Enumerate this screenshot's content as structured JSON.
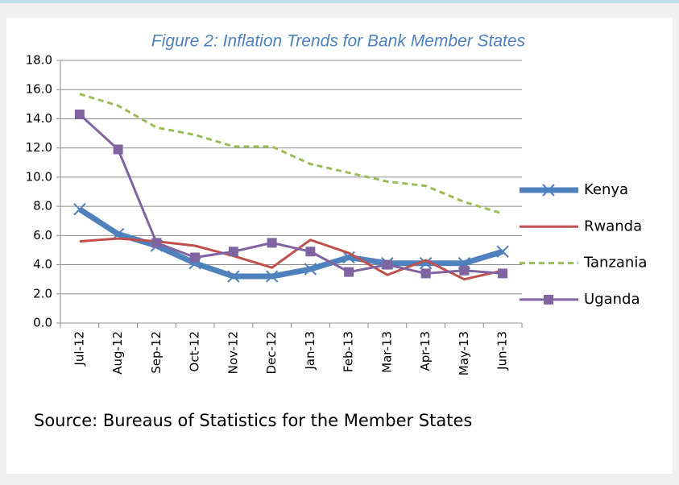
{
  "chart_data": {
    "type": "line",
    "title": "Figure 2: Inflation Trends for Bank Member States",
    "source": "Source: Bureaus of Statistics for the Member States",
    "categories": [
      "Jul-12",
      "Aug-12",
      "Sep-12",
      "Oct-12",
      "Nov-12",
      "Dec-12",
      "Jan-13",
      "Feb-13",
      "Mar-13",
      "Apr-13",
      "May-13",
      "Jun-13"
    ],
    "ylim": [
      0,
      18
    ],
    "yticks": [
      {
        "value": 0,
        "label": "0.0"
      },
      {
        "value": 2,
        "label": "2.0"
      },
      {
        "value": 4,
        "label": "4.0"
      },
      {
        "value": 6,
        "label": "6.0"
      },
      {
        "value": 8,
        "label": "8.0"
      },
      {
        "value": 10,
        "label": "10.0"
      },
      {
        "value": 12,
        "label": "12.0"
      },
      {
        "value": 14,
        "label": "14.0"
      },
      {
        "value": 16,
        "label": "16.0"
      },
      {
        "value": 18,
        "label": "18.0"
      }
    ],
    "grid": true,
    "legend": "right",
    "series": [
      {
        "name": "Kenya",
        "color": "#4f81bd",
        "values": [
          7.8,
          6.1,
          5.3,
          4.1,
          3.2,
          3.2,
          3.7,
          4.5,
          4.1,
          4.1,
          4.1,
          4.9
        ]
      },
      {
        "name": "Rwanda",
        "color": "#c0504d",
        "values": [
          5.6,
          5.8,
          5.6,
          5.3,
          4.6,
          3.8,
          5.7,
          4.8,
          3.3,
          4.3,
          3.0,
          3.6
        ]
      },
      {
        "name": "Tanzania",
        "color": "#9bbb59",
        "values": [
          15.7,
          14.9,
          13.4,
          12.9,
          12.1,
          12.1,
          10.9,
          10.3,
          9.7,
          9.4,
          8.3,
          7.5
        ]
      },
      {
        "name": "Uganda",
        "color": "#8064a2",
        "values": [
          14.3,
          11.9,
          5.5,
          4.5,
          4.9,
          5.5,
          4.9,
          3.5,
          4.0,
          3.4,
          3.6,
          3.4
        ]
      }
    ]
  }
}
